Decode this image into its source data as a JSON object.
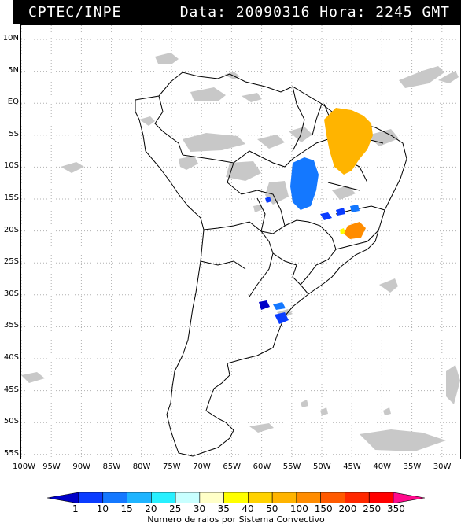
{
  "header": {
    "source": "CPTEC/INPE",
    "datetime": "Data: 20090316 Hora: 2245 GMT"
  },
  "map": {
    "lat_labels": [
      "10N",
      "5N",
      "EQ",
      "5S",
      "10S",
      "15S",
      "20S",
      "25S",
      "30S",
      "35S",
      "40S",
      "45S",
      "50S",
      "55S"
    ],
    "lon_labels": [
      "100W",
      "95W",
      "90W",
      "85W",
      "80W",
      "75W",
      "70W",
      "65W",
      "60W",
      "55W",
      "50W",
      "45W",
      "40W",
      "35W",
      "30W"
    ],
    "colors": {
      "cloud": "#c8c8c8",
      "border": "#000000",
      "grid": "#b0b0b0"
    }
  },
  "legend": {
    "caption": "Numero de raios por Sistema Convectivo",
    "values": [
      "1",
      "10",
      "15",
      "20",
      "25",
      "30",
      "35",
      "40",
      "50",
      "100",
      "150",
      "200",
      "250",
      "350"
    ],
    "colors": [
      "#0000c8",
      "#0a3cff",
      "#1478ff",
      "#1eb4ff",
      "#28f0ff",
      "#c8ffff",
      "#ffffc8",
      "#ffff00",
      "#ffd200",
      "#ffb400",
      "#ff8c00",
      "#ff5a00",
      "#ff2800",
      "#ff0000",
      "#ff0a8c"
    ]
  }
}
